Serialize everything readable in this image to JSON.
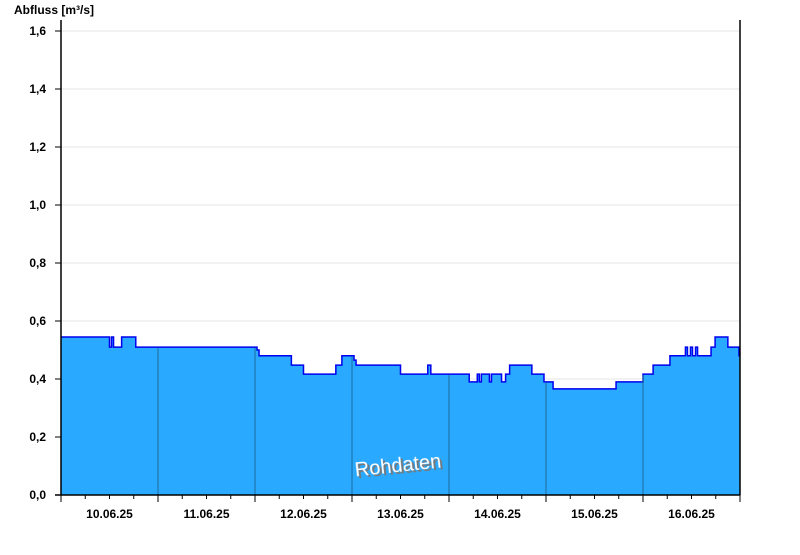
{
  "chart_data": {
    "type": "area",
    "title": "",
    "ylabel": "Abfluss [m³/s]",
    "xlabel": "",
    "ylim": [
      0,
      1.6
    ],
    "yticks": [
      "0,0",
      "0,2",
      "0,4",
      "0,6",
      "0,8",
      "1,0",
      "1,2",
      "1,4",
      "1,6"
    ],
    "xlim": [
      "2025-06-10T00:00",
      "2025-06-17T00:00"
    ],
    "xtick_labels": [
      "10.06.25",
      "11.06.25",
      "12.06.25",
      "13.06.25",
      "14.06.25",
      "15.06.25",
      "16.06.25"
    ],
    "grid": true,
    "watermark": "Rohdaten",
    "colors": {
      "fill": "#29a9ff",
      "line": "#0000ee",
      "day_marker": "#1e6a9a",
      "grid": "#e6e6e6"
    },
    "series": [
      {
        "step": true,
        "points": [
          [
            "2025-06-10T00:00",
            0.545
          ],
          [
            "2025-06-10T12:00",
            0.51
          ],
          [
            "2025-06-10T12:30",
            0.545
          ],
          [
            "2025-06-10T13:00",
            0.51
          ],
          [
            "2025-06-10T15:00",
            0.545
          ],
          [
            "2025-06-10T18:30",
            0.51
          ],
          [
            "2025-06-12T00:30",
            0.5
          ],
          [
            "2025-06-12T01:00",
            0.48
          ],
          [
            "2025-06-12T09:00",
            0.448
          ],
          [
            "2025-06-12T12:00",
            0.417
          ],
          [
            "2025-06-12T20:00",
            0.448
          ],
          [
            "2025-06-12T21:30",
            0.48
          ],
          [
            "2025-06-13T00:30",
            0.465
          ],
          [
            "2025-06-13T01:00",
            0.448
          ],
          [
            "2025-06-13T12:00",
            0.417
          ],
          [
            "2025-06-13T18:45",
            0.448
          ],
          [
            "2025-06-13T19:30",
            0.417
          ],
          [
            "2025-06-14T05:00",
            0.39
          ],
          [
            "2025-06-14T07:00",
            0.417
          ],
          [
            "2025-06-14T07:30",
            0.39
          ],
          [
            "2025-06-14T08:00",
            0.417
          ],
          [
            "2025-06-14T10:00",
            0.39
          ],
          [
            "2025-06-14T10:30",
            0.417
          ],
          [
            "2025-06-14T13:00",
            0.39
          ],
          [
            "2025-06-14T14:00",
            0.417
          ],
          [
            "2025-06-14T15:00",
            0.448
          ],
          [
            "2025-06-14T20:30",
            0.417
          ],
          [
            "2025-06-14T23:30",
            0.39
          ],
          [
            "2025-06-15T01:45",
            0.366
          ],
          [
            "2025-06-15T17:20",
            0.39
          ],
          [
            "2025-06-16T00:00",
            0.417
          ],
          [
            "2025-06-16T02:30",
            0.448
          ],
          [
            "2025-06-16T06:40",
            0.48
          ],
          [
            "2025-06-16T10:30",
            0.51
          ],
          [
            "2025-06-16T11:00",
            0.48
          ],
          [
            "2025-06-16T11:45",
            0.51
          ],
          [
            "2025-06-16T12:15",
            0.48
          ],
          [
            "2025-06-16T13:00",
            0.51
          ],
          [
            "2025-06-16T13:30",
            0.48
          ],
          [
            "2025-06-16T16:50",
            0.51
          ],
          [
            "2025-06-16T17:50",
            0.545
          ],
          [
            "2025-06-16T21:00",
            0.51
          ],
          [
            "2025-06-16T23:45",
            0.48
          ],
          [
            "2025-06-17T00:00",
            0.48
          ]
        ]
      }
    ]
  }
}
